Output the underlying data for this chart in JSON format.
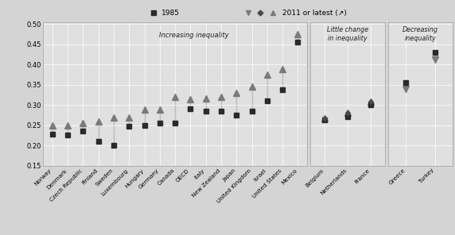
{
  "countries_increasing": [
    "Norway",
    "Denmark",
    "Czech Republic",
    "Finland",
    "Sweden",
    "Luxembourg",
    "Hungary",
    "Germany",
    "Canada",
    "OECD",
    "Italy",
    "New Zealand",
    "Japan",
    "United Kingdom",
    "Israel",
    "United States",
    "Mexico"
  ],
  "val1985_increasing": [
    0.228,
    0.225,
    0.236,
    0.21,
    0.2,
    0.248,
    0.25,
    0.256,
    0.256,
    0.29,
    0.285,
    0.285,
    0.275,
    0.285,
    0.31,
    0.338,
    0.455
  ],
  "val2011_increasing": [
    0.25,
    0.25,
    0.256,
    0.26,
    0.269,
    0.27,
    0.288,
    0.289,
    0.32,
    0.315,
    0.317,
    0.32,
    0.33,
    0.345,
    0.376,
    0.389,
    0.476
  ],
  "countries_little": [
    "Belgium",
    "Netherlands",
    "France"
  ],
  "val1985_little": [
    0.263,
    0.272,
    0.3
  ],
  "val2011_little": [
    0.268,
    0.28,
    0.308
  ],
  "countries_decreasing": [
    "Greece",
    "Turkey"
  ],
  "val1985_decreasing": [
    0.355,
    0.43
  ],
  "val2011_decreasing": [
    0.34,
    0.412
  ],
  "ylim": [
    0.15,
    0.505
  ],
  "yticks": [
    0.15,
    0.2,
    0.25,
    0.3,
    0.35,
    0.4,
    0.45,
    0.5
  ],
  "bg_color": "#d4d4d4",
  "panel_bg": "#e0e0e0",
  "marker_dark": "#2a2a2a",
  "marker_gray": "#7a7a7a",
  "marker_mid": "#4a4a4a",
  "line_color": "#2a2a2a",
  "label_increasing": "Increasing inequality",
  "label_little": "Little change\nin inequality",
  "label_decreasing": "Decreasing\ninequality",
  "legend_square": "1985",
  "legend_tri": "2011 or latest (↗)"
}
